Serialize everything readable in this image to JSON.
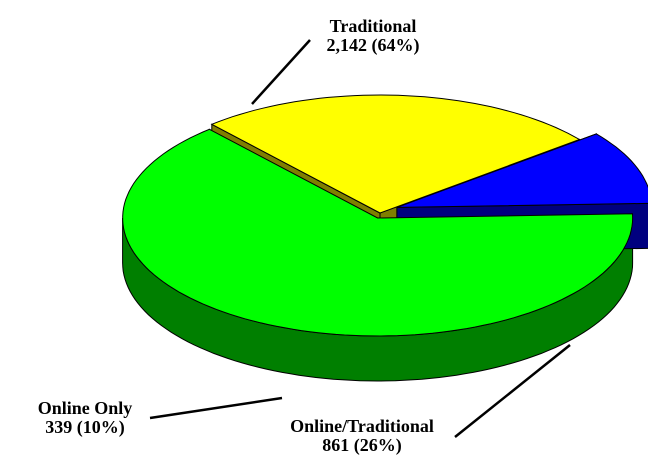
{
  "chart_data": {
    "type": "pie3d",
    "categories": [
      "Traditional",
      "Online/Traditional",
      "Online Only"
    ],
    "values": [
      2142,
      861,
      339
    ],
    "value_labels": [
      "2,142 (64%)",
      "861 (26%)",
      "339 (10%)"
    ],
    "colors": [
      "#00ff00",
      "#ffff00",
      "#0000ff"
    ]
  }
}
